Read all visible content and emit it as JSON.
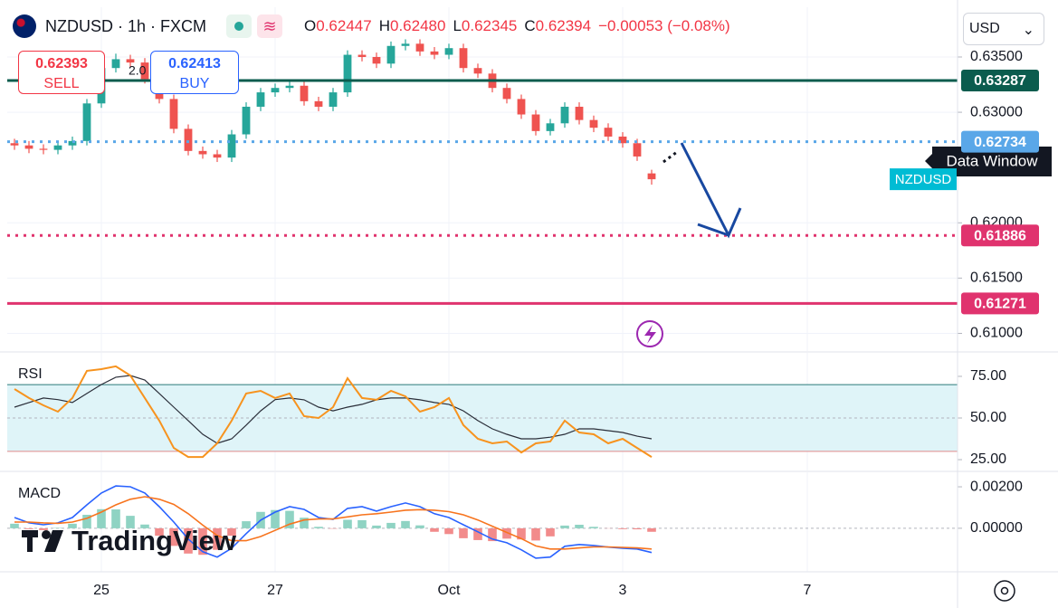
{
  "header": {
    "symbol": "NZDUSD · 1h · FXCM",
    "ohlc": [
      {
        "label": "O",
        "value": "0.62447"
      },
      {
        "label": "H",
        "value": "0.62480"
      },
      {
        "label": "L",
        "value": "0.62345"
      },
      {
        "label": "C",
        "value": "0.62394"
      }
    ],
    "change": "−0.00053 (−0.08%)",
    "currency": "USD",
    "sell": {
      "price": "0.62393",
      "label": "SELL"
    },
    "buy": {
      "price": "0.62413",
      "label": "BUY"
    },
    "spread": "2.0",
    "symbol_tag": "NZDUSD",
    "tooltip": "Data Window",
    "watermark": "TradingView"
  },
  "chart_data": [
    {
      "type": "candlestick",
      "x": [
        2,
        6,
        10,
        14,
        18,
        22,
        26,
        30,
        34,
        38,
        42,
        46,
        50,
        54,
        58,
        62,
        66,
        70,
        74,
        78,
        82,
        86,
        90,
        94,
        98,
        102,
        106,
        110,
        114,
        118,
        122,
        126,
        130,
        134,
        138,
        142,
        146,
        150,
        154,
        158,
        162,
        166,
        170,
        174,
        178
      ],
      "open": [
        0.6272,
        0.627,
        0.6267,
        0.6266,
        0.627,
        0.6274,
        0.6308,
        0.634,
        0.6348,
        0.6345,
        0.633,
        0.6312,
        0.6285,
        0.6265,
        0.6262,
        0.6259,
        0.628,
        0.6305,
        0.6318,
        0.6322,
        0.6324,
        0.631,
        0.6305,
        0.6318,
        0.6352,
        0.635,
        0.6344,
        0.636,
        0.6362,
        0.6355,
        0.6352,
        0.6358,
        0.634,
        0.6335,
        0.6322,
        0.6312,
        0.6298,
        0.6283,
        0.629,
        0.6305,
        0.6293,
        0.6286,
        0.6278,
        0.6272,
        0.62447
      ],
      "high": [
        0.6276,
        0.6274,
        0.6271,
        0.6274,
        0.6278,
        0.6312,
        0.6344,
        0.6353,
        0.6352,
        0.6349,
        0.6334,
        0.6316,
        0.6289,
        0.6269,
        0.6266,
        0.6284,
        0.6309,
        0.6322,
        0.6326,
        0.6328,
        0.6328,
        0.6314,
        0.6322,
        0.6356,
        0.6356,
        0.6354,
        0.6364,
        0.6366,
        0.6366,
        0.6359,
        0.6362,
        0.6362,
        0.6344,
        0.6339,
        0.6326,
        0.6316,
        0.6302,
        0.6294,
        0.6309,
        0.6309,
        0.6297,
        0.629,
        0.6282,
        0.6276,
        0.6248
      ],
      "low": [
        0.6266,
        0.6263,
        0.6262,
        0.6262,
        0.6266,
        0.627,
        0.6304,
        0.6336,
        0.6341,
        0.6326,
        0.6308,
        0.6281,
        0.6261,
        0.6258,
        0.6255,
        0.6255,
        0.6276,
        0.6301,
        0.6314,
        0.6318,
        0.6306,
        0.6301,
        0.6301,
        0.6314,
        0.6346,
        0.634,
        0.634,
        0.6356,
        0.6351,
        0.6348,
        0.6348,
        0.6336,
        0.6331,
        0.6318,
        0.6308,
        0.6294,
        0.6279,
        0.6279,
        0.6286,
        0.6289,
        0.6282,
        0.6274,
        0.6268,
        0.6256,
        0.62345
      ],
      "close": [
        0.627,
        0.6267,
        0.6266,
        0.627,
        0.6274,
        0.6308,
        0.634,
        0.6348,
        0.6345,
        0.633,
        0.6312,
        0.6285,
        0.6265,
        0.6262,
        0.6259,
        0.628,
        0.6305,
        0.6318,
        0.6322,
        0.6324,
        0.631,
        0.6305,
        0.6318,
        0.6352,
        0.635,
        0.6344,
        0.636,
        0.6362,
        0.6355,
        0.6352,
        0.6358,
        0.634,
        0.6335,
        0.6322,
        0.6312,
        0.6298,
        0.6283,
        0.629,
        0.6305,
        0.6293,
        0.6286,
        0.6278,
        0.6272,
        0.626,
        0.62394
      ],
      "colors": {
        "up": "#26a69a",
        "down": "#ef5350"
      },
      "xlim": [
        0,
        262.5
      ],
      "xticks": [
        {
          "value": 26,
          "label": "25"
        },
        {
          "value": 74,
          "label": "27"
        },
        {
          "value": 122,
          "label": "Oct"
        },
        {
          "value": 170,
          "label": "3"
        },
        {
          "value": 221,
          "label": "7"
        }
      ],
      "ylim": [
        0.6084,
        0.6395
      ],
      "yticks": [
        {
          "value": 0.61,
          "label": "0.61000"
        },
        {
          "value": 0.615,
          "label": "0.61500"
        },
        {
          "value": 0.62,
          "label": "0.62000"
        },
        {
          "value": 0.63,
          "label": "0.63000"
        },
        {
          "value": 0.635,
          "label": "0.63500"
        }
      ],
      "hlines": [
        {
          "value": 0.63287,
          "color": "#0b5c4e",
          "style": "solid"
        },
        {
          "value": 0.62734,
          "color": "#5aa7e8",
          "style": "dotted"
        },
        {
          "value": 0.61886,
          "color": "#e0336e",
          "style": "dotted"
        },
        {
          "value": 0.61271,
          "color": "#e0336e",
          "style": "solid"
        }
      ],
      "grid": true
    },
    {
      "type": "line",
      "title": "RSI",
      "series": [
        {
          "color": "#f7931e",
          "values": [
            67.4,
            62,
            57.6,
            53.8,
            62,
            78.3,
            79.3,
            81,
            75.5,
            62,
            48.4,
            32,
            26.6,
            26.6,
            34.8,
            48.4,
            64.7,
            66.3,
            62,
            64.7,
            51.1,
            50,
            56.5,
            73.9,
            62,
            60.9,
            66.3,
            63,
            53.8,
            56.5,
            62,
            45.7,
            37.5,
            34.8,
            35.9,
            29.3,
            34.8,
            35.9,
            48.4,
            41.3,
            40.2,
            34.8,
            37.5,
            32,
            26.6
          ]
        },
        {
          "color": "#2a2e39",
          "values": [
            56.5,
            59.3,
            62,
            61,
            59.3,
            64.7,
            70.1,
            74.5,
            75.5,
            72.8,
            64.7,
            56.5,
            48.4,
            40.2,
            34.8,
            37.5,
            45.7,
            54.3,
            61,
            62,
            60.9,
            56.5,
            54.3,
            56.5,
            58.2,
            60.9,
            62,
            62,
            60.9,
            59.3,
            58.2,
            54.3,
            48.4,
            43.5,
            40.2,
            37.5,
            37.5,
            38.5,
            40.2,
            43.5,
            43.5,
            42.4,
            41.3,
            39.1,
            37.5
          ]
        }
      ],
      "bands": [
        30,
        70
      ],
      "band_color": "#dff4f8",
      "midline": 50,
      "ylim": [
        18.5,
        89.1
      ],
      "yticks": [
        {
          "value": 25,
          "label": "25.00"
        },
        {
          "value": 50,
          "label": "50.00"
        },
        {
          "value": 75,
          "label": "75.00"
        }
      ]
    },
    {
      "type": "macd",
      "title": "MACD",
      "series": [
        {
          "color": "#2962ff",
          "values": [
            0.00052,
            0.00026,
            0.00017,
            0.00026,
            0.00052,
            0.00113,
            0.0017,
            0.00204,
            0.002,
            0.0017,
            0.00104,
            0.0003,
            -0.00052,
            -0.00113,
            -0.00139,
            -0.00096,
            -0.00026,
            0.00039,
            0.00078,
            0.00104,
            0.00091,
            0.00052,
            0.00043,
            0.00096,
            0.00104,
            0.00083,
            0.00104,
            0.00122,
            0.00104,
            0.0007,
            0.00052,
            0.00017,
            -0.00017,
            -0.00052,
            -0.0007,
            -0.00104,
            -0.00144,
            -0.00139,
            -0.00087,
            -0.00078,
            -0.00083,
            -0.00091,
            -0.00096,
            -0.001,
            -0.00117
          ]
        },
        {
          "color": "#f7741e",
          "values": [
            0.0003,
            0.0003,
            0.00026,
            0.00024,
            0.0003,
            0.00048,
            0.00078,
            0.00113,
            0.0014,
            0.00152,
            0.0014,
            0.00115,
            0.0007,
            0.00015,
            -0.00035,
            -0.0006,
            -0.0006,
            -0.0004,
            -0.0001,
            0.0002,
            0.0004,
            0.00045,
            0.00045,
            0.00055,
            0.00065,
            0.0007,
            0.00078,
            0.00087,
            0.0009,
            0.00087,
            0.0008,
            0.00065,
            0.0004,
            0.0001,
            -0.0002,
            -0.0005,
            -0.00085,
            -0.001,
            -0.001,
            -0.00095,
            -0.0009,
            -0.0009,
            -0.00092,
            -0.00095,
            -0.001
          ]
        }
      ],
      "histogram": [
        0.00022,
        -4e-05,
        -9e-05,
        2e-05,
        0.00022,
        0.00065,
        0.00092,
        0.00091,
        0.0006,
        0.00018,
        -0.00036,
        -0.00085,
        -0.00122,
        -0.00128,
        -0.00104,
        -0.00036,
        0.00034,
        0.00079,
        0.00088,
        0.00084,
        0.00051,
        7e-05,
        -2e-05,
        0.00041,
        0.00039,
        0.00013,
        0.00026,
        0.00035,
        0.00014,
        -0.00017,
        -0.00028,
        -0.00048,
        -0.00057,
        -0.00062,
        -0.0005,
        -0.00054,
        -0.00059,
        -0.00039,
        0.00013,
        0.00017,
        7e-05,
        -1e-05,
        -4e-05,
        -5e-05,
        -0.00017
      ],
      "histogram_colors": {
        "up": "#8fd3c3",
        "down": "#f28b8b"
      },
      "ylim": [
        -0.0021,
        0.0027
      ],
      "yticks": [
        {
          "value": 0,
          "label": "0.00000"
        },
        {
          "value": 0.002,
          "label": "0.00200"
        }
      ]
    }
  ]
}
